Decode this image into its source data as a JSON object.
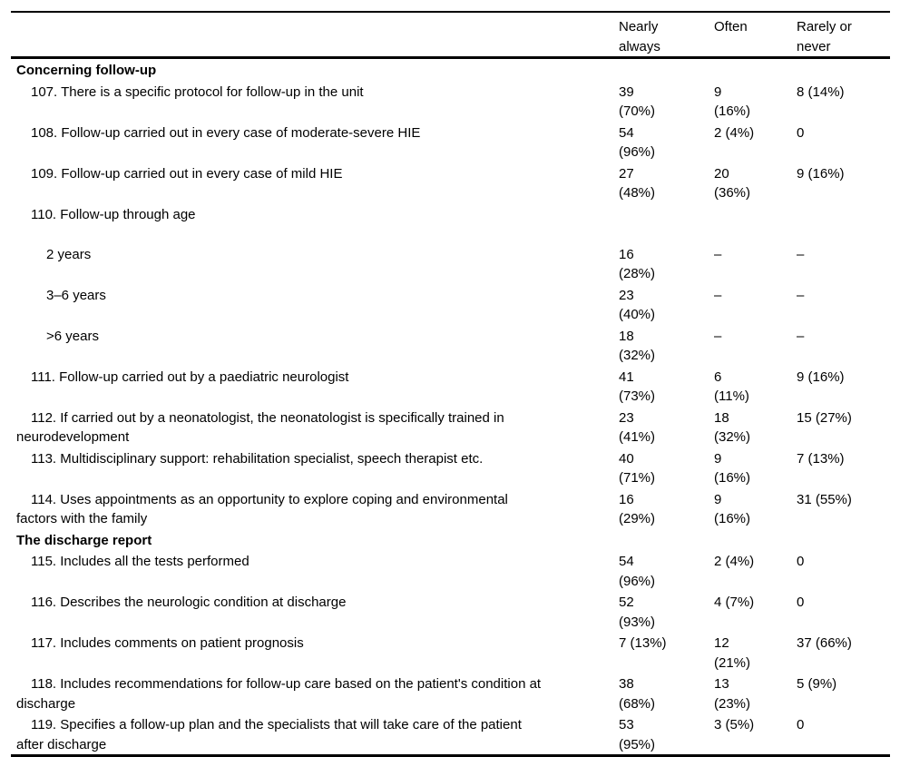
{
  "table": {
    "columns": {
      "question": "",
      "nearly_always": "Nearly\nalways",
      "often": "Often",
      "rarely_never": "Rarely or\nnever"
    },
    "rows": [
      {
        "type": "section",
        "label": "Concerning follow-up"
      },
      {
        "type": "item",
        "label": "107. There is a specific protocol for follow-up in the unit",
        "nearly_always": "39\n(70%)",
        "often": "9\n(16%)",
        "rarely_never": "8 (14%)"
      },
      {
        "type": "item",
        "label": "108. Follow-up carried out in every case of moderate-severe HIE",
        "nearly_always": "54\n(96%)",
        "often": "2 (4%)",
        "rarely_never": "0"
      },
      {
        "type": "item",
        "label": "109. Follow-up carried out in every case of mild HIE",
        "nearly_always": "27\n(48%)",
        "often": "20\n(36%)",
        "rarely_never": "9 (16%)"
      },
      {
        "type": "item",
        "label": "110. Follow-up through age",
        "nearly_always": "",
        "often": "",
        "rarely_never": ""
      },
      {
        "type": "subitem",
        "label": "2 years",
        "nearly_always": "16\n(28%)",
        "often": "–",
        "rarely_never": "–"
      },
      {
        "type": "subitem",
        "label": "3–6 years",
        "nearly_always": "23\n(40%)",
        "often": "–",
        "rarely_never": "–"
      },
      {
        "type": "subitem",
        "label": ">6 years",
        "nearly_always": "18\n(32%)",
        "often": "–",
        "rarely_never": "–"
      },
      {
        "type": "item",
        "label": "111. Follow-up carried out by a paediatric neurologist",
        "nearly_always": "41\n(73%)",
        "often": "6\n(11%)",
        "rarely_never": "9 (16%)"
      },
      {
        "type": "item",
        "label": "112. If carried out by a neonatologist, the neonatologist is specifically trained in\nneurodevelopment",
        "nearly_always": "23\n(41%)",
        "often": "18\n(32%)",
        "rarely_never": "15 (27%)"
      },
      {
        "type": "item",
        "label": "113. Multidisciplinary support: rehabilitation specialist, speech therapist etc.",
        "nearly_always": "40\n(71%)",
        "often": "9\n(16%)",
        "rarely_never": "7 (13%)"
      },
      {
        "type": "item",
        "label": "114. Uses appointments as an opportunity to explore coping and environmental\nfactors with the family",
        "nearly_always": "16\n(29%)",
        "often": "9\n(16%)",
        "rarely_never": "31 (55%)"
      },
      {
        "type": "section",
        "label": "The discharge report"
      },
      {
        "type": "item",
        "label": "115. Includes all the tests performed",
        "nearly_always": "54\n(96%)",
        "often": "2 (4%)",
        "rarely_never": "0"
      },
      {
        "type": "item",
        "label": "116. Describes the neurologic condition at discharge",
        "nearly_always": "52\n(93%)",
        "often": "4 (7%)",
        "rarely_never": "0"
      },
      {
        "type": "item",
        "label": "117. Includes comments on patient prognosis",
        "nearly_always": "7 (13%)",
        "often": "12\n(21%)",
        "rarely_never": "37 (66%)"
      },
      {
        "type": "item",
        "label": "118. Includes recommendations for follow-up care based on the patient's condition at\ndischarge",
        "nearly_always": "38\n(68%)",
        "often": "13\n(23%)",
        "rarely_never": "5 (9%)"
      },
      {
        "type": "item",
        "label": "119. Specifies a follow-up plan and the specialists that will take care of the patient\nafter discharge",
        "nearly_always": "53\n(95%)",
        "often": "3 (5%)",
        "rarely_never": "0"
      }
    ]
  }
}
